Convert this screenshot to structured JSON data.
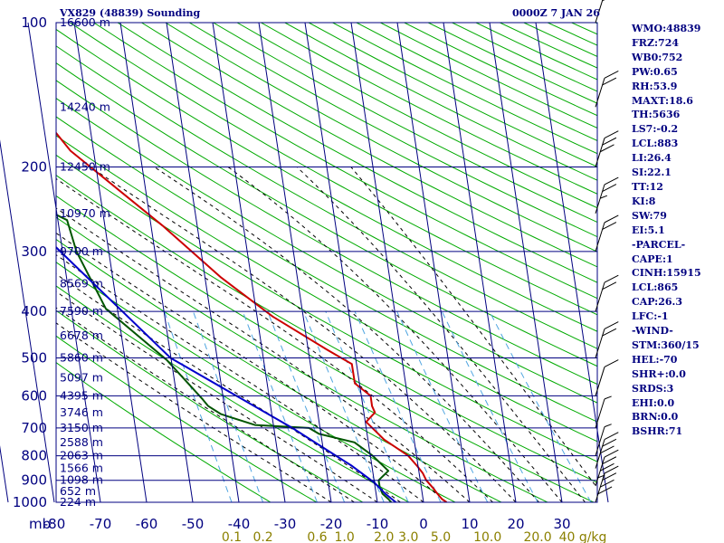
{
  "header": {
    "title": "VX829 (48839) Sounding",
    "datetime": "0000Z  7 JAN 26"
  },
  "indices": [
    "WMO:48839",
    "FRZ:724",
    "WB0:752",
    "PW:0.65",
    "RH:53.9",
    "MAXT:18.6",
    "TH:5636",
    "LS7:-0.2",
    "LCL:883",
    "LI:26.4",
    "SI:22.1",
    "TT:12",
    "KI:8",
    "SW:79",
    "EI:5.1",
    "-PARCEL-",
    "CAPE:1",
    "CINH:15915",
    "LCL:865",
    "CAP:26.3",
    "LFC:-1",
    "-WIND-",
    "STM:360/15",
    "HEL:-70",
    "SHR+:0.0",
    "SRDS:3",
    "EHI:0.0",
    "BRN:0.0",
    "BSHR:71"
  ],
  "colors": {
    "frame": "#000080",
    "dry_adiabat": "#00aa00",
    "moist_adiabat": "#000000",
    "mixing_ratio": "#4fa5e0",
    "temperature": "#cc0000",
    "dewpoint": "#005500",
    "parcel": "#0000cc",
    "mixing_label": "#8b8000"
  },
  "chart_data": {
    "type": "line",
    "title": "VX829 (48839) Sounding",
    "xlabel": "",
    "ylabel": "mb",
    "pressure_levels": [
      100,
      200,
      300,
      400,
      500,
      600,
      700,
      800,
      900,
      1000
    ],
    "pressure_tick_labels": [
      "100",
      "200",
      "300",
      "400",
      "500",
      "600",
      "700",
      "800",
      "900",
      "1000"
    ],
    "temperature_ticks": [
      -80,
      -70,
      -60,
      -50,
      -40,
      -30,
      -20,
      -10,
      0,
      10,
      20,
      30
    ],
    "temperature_tick_labels": [
      "-80",
      "-70",
      "-60",
      "-50",
      "-40",
      "-30",
      "-20",
      "-10",
      "0",
      "10",
      "20",
      "30"
    ],
    "height_labels": [
      {
        "p": 100,
        "label": "16600 m"
      },
      {
        "p": 150,
        "label": "14240 m"
      },
      {
        "p": 200,
        "label": "12450 m"
      },
      {
        "p": 250,
        "label": "10970 m"
      },
      {
        "p": 300,
        "label": "9700 m"
      },
      {
        "p": 350,
        "label": "8569 m"
      },
      {
        "p": 400,
        "label": "7590 m"
      },
      {
        "p": 450,
        "label": "6678 m"
      },
      {
        "p": 500,
        "label": "5860 m"
      },
      {
        "p": 550,
        "label": "5097 m"
      },
      {
        "p": 600,
        "label": "4395 m"
      },
      {
        "p": 650,
        "label": "3746 m"
      },
      {
        "p": 700,
        "label": "3150 m"
      },
      {
        "p": 750,
        "label": "2588 m"
      },
      {
        "p": 800,
        "label": "2063 m"
      },
      {
        "p": 850,
        "label": "1566 m"
      },
      {
        "p": 900,
        "label": "1098 m"
      },
      {
        "p": 950,
        "label": "652 m"
      },
      {
        "p": 1000,
        "label": "224 m"
      }
    ],
    "mixing_ratio_labels": [
      "0.1",
      "0.2",
      "0.6",
      "1.0",
      "2.0",
      "3.0",
      "5.0",
      "10.0",
      "20.0",
      "40 g/kg"
    ],
    "series": [
      {
        "key": "temperature",
        "points": [
          [
            -80.5,
            100
          ],
          [
            -75.5,
            120
          ],
          [
            -73.3,
            140
          ],
          [
            -65,
            185
          ],
          [
            -47.5,
            265
          ],
          [
            -36.5,
            340
          ],
          [
            -26.6,
            410
          ],
          [
            -16,
            480
          ],
          [
            -11,
            515
          ],
          [
            -11,
            565
          ],
          [
            -8,
            600
          ],
          [
            -8,
            630
          ],
          [
            -7.6,
            650
          ],
          [
            -9.8,
            680
          ],
          [
            -6.5,
            740
          ],
          [
            -1.8,
            800
          ],
          [
            -0.2,
            840
          ],
          [
            0.8,
            870
          ],
          [
            1.3,
            900
          ],
          [
            2.4,
            930
          ],
          [
            3.3,
            960
          ],
          [
            4.1,
            985
          ],
          [
            5.0,
            1000
          ]
        ]
      },
      {
        "key": "dewpoint",
        "points": [
          [
            -84,
            150
          ],
          [
            -83,
            165
          ],
          [
            -79.8,
            200
          ],
          [
            -78,
            210
          ],
          [
            -76,
            235
          ],
          [
            -68,
            258
          ],
          [
            -67,
            300
          ],
          [
            -62.5,
            395
          ],
          [
            -51,
            505
          ],
          [
            -44.5,
            610
          ],
          [
            -43.5,
            630
          ],
          [
            -41,
            655
          ],
          [
            -39,
            665
          ],
          [
            -34,
            690
          ],
          [
            -22.4,
            700
          ],
          [
            -20.4,
            720
          ],
          [
            -13,
            750
          ],
          [
            -9.5,
            800
          ],
          [
            -6.6,
            860
          ],
          [
            -9,
            900
          ],
          [
            -9,
            930
          ],
          [
            -8.6,
            960
          ],
          [
            -7.5,
            985
          ],
          [
            -7,
            1000
          ]
        ]
      },
      {
        "key": "parcel",
        "points": [
          [
            -84.7,
            210
          ],
          [
            -50.1,
            500
          ],
          [
            -26,
            700
          ],
          [
            -14.3,
            840
          ],
          [
            -10,
            910
          ],
          [
            -8,
            960
          ],
          [
            -6,
            1000
          ]
        ]
      }
    ],
    "wind_barbs": [
      {
        "p": 100,
        "speed_kt": 15
      },
      {
        "p": 150,
        "speed_kt": 20
      },
      {
        "p": 200,
        "speed_kt": 30
      },
      {
        "p": 250,
        "speed_kt": 25
      },
      {
        "p": 300,
        "speed_kt": 20
      },
      {
        "p": 400,
        "speed_kt": 20
      },
      {
        "p": 500,
        "speed_kt": 20
      },
      {
        "p": 600,
        "speed_kt": 10
      },
      {
        "p": 700,
        "speed_kt": 5
      },
      {
        "p": 800,
        "speed_kt": 5
      },
      {
        "p": 850,
        "speed_kt": 30
      },
      {
        "p": 925,
        "speed_kt": 35
      },
      {
        "p": 1000,
        "speed_kt": 40
      }
    ]
  }
}
